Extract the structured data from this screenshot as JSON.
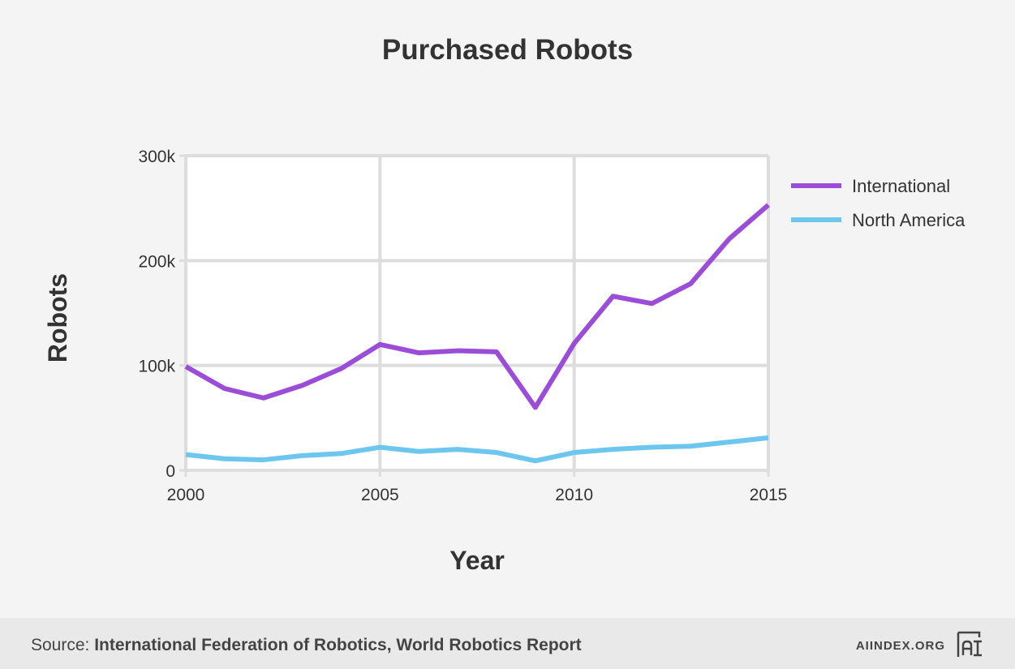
{
  "chart_data": {
    "type": "line",
    "title": "Purchased Robots",
    "xlabel": "Year",
    "ylabel": "Robots",
    "x": [
      2000,
      2001,
      2002,
      2003,
      2004,
      2005,
      2006,
      2007,
      2008,
      2009,
      2010,
      2011,
      2012,
      2013,
      2014,
      2015
    ],
    "series": [
      {
        "name": "International",
        "color": "#9b4dd8",
        "values": [
          99000,
          78000,
          69000,
          81000,
          97000,
          120000,
          112000,
          114000,
          113000,
          60000,
          121000,
          166000,
          159000,
          178000,
          221000,
          253000
        ]
      },
      {
        "name": "North America",
        "color": "#6cc6ee",
        "values": [
          15000,
          11000,
          10000,
          14000,
          16000,
          22000,
          18000,
          20000,
          17000,
          9000,
          17000,
          20000,
          22000,
          23000,
          27000,
          31000
        ]
      }
    ],
    "xlim": [
      2000,
      2015
    ],
    "ylim": [
      0,
      300000
    ],
    "xticks": [
      2000,
      2005,
      2010,
      2015
    ],
    "xtick_labels": [
      "2000",
      "2005",
      "2010",
      "2015"
    ],
    "yticks": [
      0,
      100000,
      200000,
      300000
    ],
    "ytick_labels": [
      "0",
      "100k",
      "200k",
      "300k"
    ],
    "grid": true,
    "legend_position": "right"
  },
  "footer": {
    "source_prefix": "Source: ",
    "source_name": "International Federation of Robotics, World Robotics Report",
    "brand": "AIINDEX.ORG",
    "logo_icon": "ai-index-logo-icon"
  },
  "colors": {
    "background": "#f4f4f4",
    "plot_background": "#ffffff",
    "grid": "#dddddd",
    "footer_background": "#e9e9e9"
  }
}
